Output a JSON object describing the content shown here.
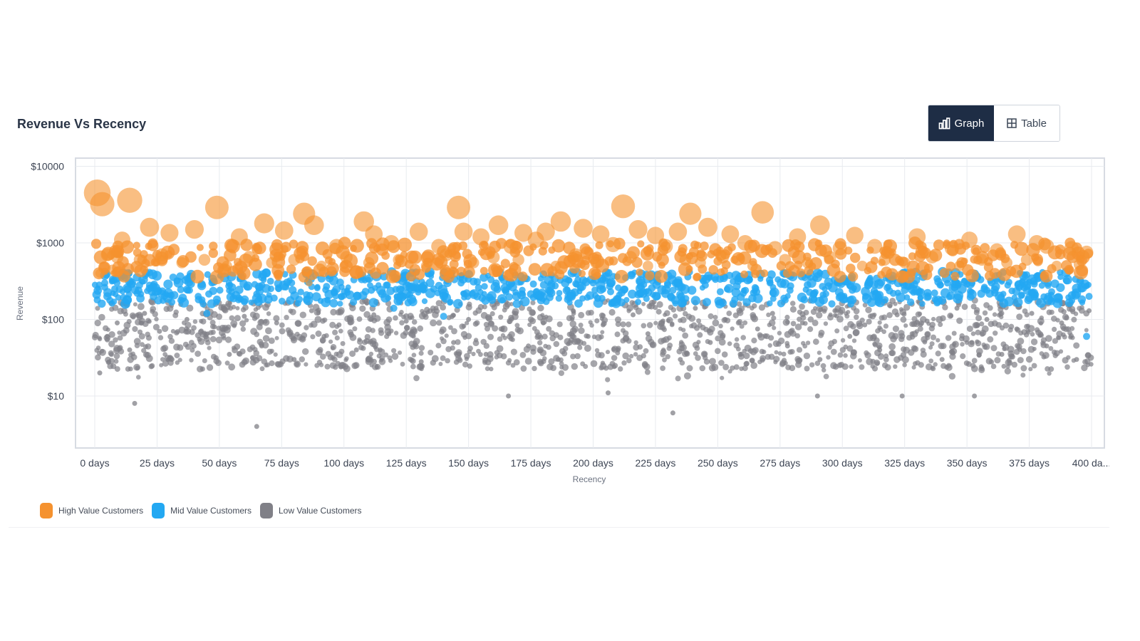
{
  "page": {
    "title": "Revenue Vs Recency",
    "view_toggle": {
      "graph_label": "Graph",
      "table_label": "Table",
      "active": "Graph",
      "graph_icon": "bar-chart-icon",
      "table_icon": "table-grid-icon"
    }
  },
  "colors": {
    "high": "#f5922f",
    "mid": "#23a8f2",
    "low": "#808087",
    "active_toggle": "#1e2d45"
  },
  "chart_data": {
    "type": "scatter",
    "title": "",
    "xlabel": "Recency",
    "ylabel": "Revenue",
    "x_unit": "days",
    "xlim": [
      0,
      400
    ],
    "ylim": [
      3,
      15000
    ],
    "yscale": "log",
    "grid": true,
    "legend_position": "bottom-left",
    "x_ticks": [
      "0 days",
      "25 days",
      "50 days",
      "75 days",
      "100 days",
      "125 days",
      "150 days",
      "175 days",
      "200 days",
      "225 days",
      "250 days",
      "275 days",
      "300 days",
      "325 days",
      "350 days",
      "375 days",
      "400 da..."
    ],
    "y_ticks": [
      "$10",
      "$100",
      "$1000",
      "$10000"
    ],
    "series": [
      {
        "name": "High Value Customers",
        "color": "#f5922f",
        "points": [
          [
            1,
            4500
          ],
          [
            3,
            3200
          ],
          [
            14,
            3600
          ],
          [
            49,
            2900
          ],
          [
            84,
            2400
          ],
          [
            212,
            3000
          ],
          [
            239,
            2400
          ],
          [
            146,
            2900
          ],
          [
            268,
            2500
          ],
          [
            68,
            1800
          ],
          [
            88,
            1700
          ],
          [
            108,
            1900
          ],
          [
            22,
            1600
          ],
          [
            76,
            1450
          ],
          [
            162,
            1700
          ],
          [
            181,
            1400
          ],
          [
            187,
            1900
          ],
          [
            196,
            1550
          ],
          [
            112,
            1300
          ],
          [
            130,
            1400
          ],
          [
            148,
            1400
          ],
          [
            155,
            1200
          ],
          [
            172,
            1350
          ],
          [
            203,
            1300
          ],
          [
            218,
            1500
          ],
          [
            225,
            1250
          ],
          [
            234,
            1400
          ],
          [
            246,
            1600
          ],
          [
            255,
            1300
          ],
          [
            282,
            1200
          ],
          [
            291,
            1700
          ],
          [
            305,
            1250
          ],
          [
            330,
            1200
          ],
          [
            351,
            1100
          ],
          [
            370,
            1300
          ],
          [
            382,
            900
          ],
          [
            11,
            1100
          ],
          [
            30,
            1350
          ],
          [
            40,
            1500
          ],
          [
            58,
            1200
          ],
          [
            97,
            900
          ],
          [
            119,
            1000
          ],
          [
            138,
            900
          ],
          [
            167,
            900
          ],
          [
            177,
            1100
          ],
          [
            208,
            950
          ],
          [
            229,
            900
          ],
          [
            261,
            1000
          ],
          [
            273,
            850
          ],
          [
            299,
            850
          ],
          [
            313,
            900
          ],
          [
            344,
            850
          ],
          [
            362,
            800
          ],
          [
            378,
            1000
          ],
          [
            392,
            850
          ],
          [
            398,
            750
          ],
          [
            5,
            700
          ],
          [
            9,
            650
          ],
          [
            18,
            600
          ],
          [
            27,
            700
          ],
          [
            35,
            550
          ],
          [
            44,
            600
          ],
          [
            53,
            500
          ],
          [
            62,
            650
          ],
          [
            71,
            550
          ],
          [
            80,
            600
          ],
          [
            91,
            500
          ],
          [
            101,
            650
          ],
          [
            110,
            550
          ],
          [
            122,
            600
          ],
          [
            133,
            500
          ],
          [
            141,
            700
          ],
          [
            152,
            550
          ],
          [
            160,
            650
          ],
          [
            170,
            600
          ],
          [
            185,
            500
          ],
          [
            193,
            700
          ],
          [
            201,
            550
          ],
          [
            215,
            650
          ],
          [
            222,
            500
          ],
          [
            237,
            600
          ],
          [
            243,
            550
          ],
          [
            252,
            650
          ],
          [
            264,
            500
          ],
          [
            277,
            600
          ],
          [
            286,
            550
          ],
          [
            295,
            650
          ],
          [
            308,
            500
          ],
          [
            317,
            600
          ],
          [
            325,
            550
          ],
          [
            336,
            650
          ],
          [
            347,
            500
          ],
          [
            356,
            600
          ],
          [
            366,
            550
          ],
          [
            374,
            600
          ],
          [
            386,
            500
          ],
          [
            395,
            520
          ],
          [
            2,
            400
          ],
          [
            7,
            450
          ],
          [
            86,
            300
          ]
        ]
      },
      {
        "name": "Mid Value Customers",
        "color": "#23a8f2",
        "points": [
          [
            1,
            180
          ],
          [
            4,
            300
          ],
          [
            8,
            250
          ],
          [
            12,
            350
          ],
          [
            17,
            220
          ],
          [
            22,
            280
          ],
          [
            28,
            200
          ],
          [
            33,
            320
          ],
          [
            38,
            240
          ],
          [
            43,
            180
          ],
          [
            47,
            300
          ],
          [
            55,
            230
          ],
          [
            60,
            170
          ],
          [
            66,
            260
          ],
          [
            72,
            190
          ],
          [
            79,
            300
          ],
          [
            85,
            210
          ],
          [
            93,
            270
          ],
          [
            99,
            200
          ],
          [
            104,
            330
          ],
          [
            111,
            240
          ],
          [
            117,
            280
          ],
          [
            124,
            200
          ],
          [
            129,
            320
          ],
          [
            136,
            250
          ],
          [
            143,
            380
          ],
          [
            147,
            300
          ],
          [
            154,
            260
          ],
          [
            159,
            330
          ],
          [
            165,
            230
          ],
          [
            171,
            370
          ],
          [
            176,
            290
          ],
          [
            182,
            240
          ],
          [
            189,
            340
          ],
          [
            195,
            260
          ],
          [
            200,
            300
          ],
          [
            207,
            230
          ],
          [
            213,
            350
          ],
          [
            219,
            270
          ],
          [
            226,
            310
          ],
          [
            232,
            240
          ],
          [
            238,
            360
          ],
          [
            245,
            280
          ],
          [
            251,
            230
          ],
          [
            258,
            340
          ],
          [
            265,
            260
          ],
          [
            271,
            300
          ],
          [
            279,
            240
          ],
          [
            285,
            350
          ],
          [
            292,
            270
          ],
          [
            298,
            310
          ],
          [
            304,
            240
          ],
          [
            311,
            330
          ],
          [
            318,
            260
          ],
          [
            324,
            300
          ],
          [
            331,
            230
          ],
          [
            338,
            340
          ],
          [
            345,
            260
          ],
          [
            352,
            300
          ],
          [
            358,
            240
          ],
          [
            364,
            330
          ],
          [
            371,
            260
          ],
          [
            377,
            290
          ],
          [
            384,
            230
          ],
          [
            390,
            320
          ],
          [
            396,
            250
          ],
          [
            399,
            200
          ],
          [
            45,
            120
          ],
          [
            120,
            140
          ],
          [
            140,
            110
          ],
          [
            398,
            60
          ]
        ]
      },
      {
        "name": "Low Value Customers",
        "color": "#808087",
        "points": [
          [
            16,
            8
          ],
          [
            65,
            4
          ],
          [
            232,
            6
          ],
          [
            166,
            10
          ],
          [
            206,
            11
          ],
          [
            290,
            10
          ],
          [
            324,
            10
          ],
          [
            353,
            10
          ],
          [
            2,
            20
          ],
          [
            5,
            60
          ],
          [
            9,
            90
          ],
          [
            14,
            40
          ],
          [
            20,
            120
          ],
          [
            26,
            70
          ],
          [
            31,
            30
          ],
          [
            37,
            100
          ],
          [
            42,
            55
          ],
          [
            48,
            80
          ],
          [
            54,
            35
          ],
          [
            60,
            110
          ],
          [
            67,
            45
          ],
          [
            73,
            90
          ],
          [
            80,
            30
          ],
          [
            87,
            130
          ],
          [
            92,
            60
          ],
          [
            98,
            85
          ],
          [
            105,
            40
          ],
          [
            112,
            115
          ],
          [
            118,
            65
          ],
          [
            125,
            95
          ],
          [
            131,
            28
          ],
          [
            137,
            140
          ],
          [
            144,
            50
          ],
          [
            150,
            100
          ],
          [
            157,
            35
          ],
          [
            163,
            75
          ],
          [
            169,
            120
          ],
          [
            174,
            45
          ],
          [
            180,
            90
          ],
          [
            186,
            30
          ],
          [
            192,
            130
          ],
          [
            198,
            60
          ],
          [
            204,
            85
          ],
          [
            210,
            40
          ],
          [
            216,
            115
          ],
          [
            222,
            65
          ],
          [
            228,
            95
          ],
          [
            235,
            30
          ],
          [
            241,
            140
          ],
          [
            247,
            50
          ],
          [
            253,
            100
          ],
          [
            259,
            35
          ],
          [
            266,
            75
          ],
          [
            272,
            120
          ],
          [
            278,
            45
          ],
          [
            284,
            90
          ],
          [
            291,
            30
          ],
          [
            297,
            130
          ],
          [
            303,
            60
          ],
          [
            309,
            85
          ],
          [
            315,
            40
          ],
          [
            322,
            115
          ],
          [
            328,
            65
          ],
          [
            334,
            95
          ],
          [
            340,
            30
          ],
          [
            346,
            140
          ],
          [
            352,
            50
          ],
          [
            358,
            100
          ],
          [
            364,
            35
          ],
          [
            370,
            75
          ],
          [
            376,
            120
          ],
          [
            382,
            45
          ],
          [
            388,
            90
          ],
          [
            394,
            30
          ],
          [
            399,
            130
          ]
        ]
      }
    ]
  }
}
